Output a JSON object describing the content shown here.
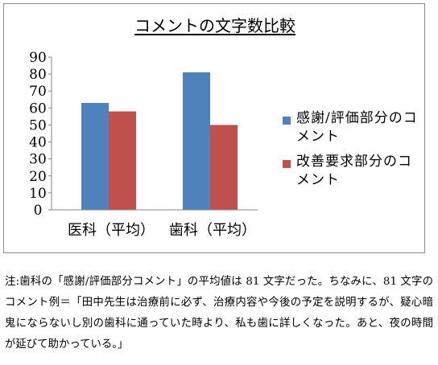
{
  "chart_data": {
    "type": "bar",
    "title": "コメントの文字数比較",
    "categories": [
      "医科（平均）",
      "歯科（平均）"
    ],
    "series": [
      {
        "name": "感謝/評価部分のコメント",
        "color": "#4f81bd",
        "values": [
          63,
          81
        ]
      },
      {
        "name": "改善要求部分のコメント",
        "color": "#c0504d",
        "values": [
          58,
          50
        ]
      }
    ],
    "y_ticks": [
      "0",
      "10",
      "20",
      "30",
      "40",
      "50",
      "60",
      "70",
      "80",
      "90"
    ],
    "ylim": [
      0,
      90
    ],
    "grid": false,
    "legend_position": "right"
  },
  "note": "注:歯科の「感謝/評価部分コメント」の平均値は 81 文字だった。ちなみに、81 文字のコメント例＝「田中先生は治療前に必ず、治療内容や今後の予定を説明するが、疑心暗鬼にならないし別の歯科に通っていた時より、私も歯に詳しくなった。あと、夜の時間が延びて助かっている。」"
}
